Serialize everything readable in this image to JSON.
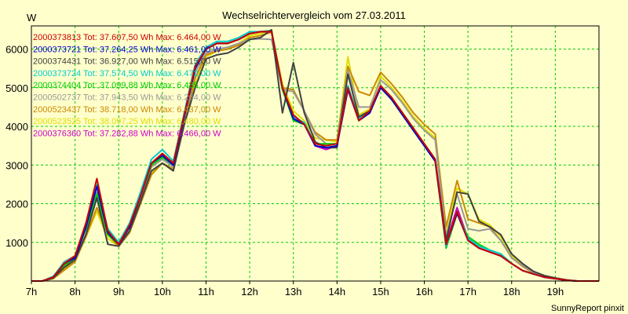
{
  "chart_data": {
    "type": "line",
    "title": "Wechselrichtervergleich vom 27.03.2011",
    "ylabel": "W",
    "xlabel": "",
    "footer": "SunnyReport pinxit",
    "ylim": [
      0,
      6600
    ],
    "xlim": [
      7.0,
      20.0
    ],
    "grid": true,
    "legend_position": "top-left",
    "y_ticks": [
      1000,
      2000,
      3000,
      4000,
      5000,
      6000
    ],
    "x_ticks": [
      7,
      8,
      9,
      10,
      11,
      12,
      13,
      14,
      15,
      16,
      17,
      18,
      19
    ],
    "x_tick_labels": [
      "7h",
      "8h",
      "9h",
      "10h",
      "11h",
      "12h",
      "13h",
      "14h",
      "15h",
      "16h",
      "17h",
      "18h",
      "19h"
    ],
    "x": [
      7.0,
      7.25,
      7.5,
      7.75,
      8.0,
      8.25,
      8.5,
      8.75,
      9.0,
      9.25,
      9.5,
      9.75,
      10.0,
      10.25,
      10.5,
      10.75,
      11.0,
      11.25,
      11.5,
      11.75,
      12.0,
      12.25,
      12.5,
      12.75,
      13.0,
      13.25,
      13.5,
      13.75,
      14.0,
      14.25,
      14.5,
      14.75,
      15.0,
      15.25,
      15.5,
      15.75,
      16.0,
      16.25,
      16.5,
      16.75,
      17.0,
      17.25,
      17.5,
      17.75,
      18.0,
      18.25,
      18.5,
      18.75,
      19.0,
      19.25,
      19.5,
      19.75,
      20.0
    ],
    "series": [
      {
        "name": "2000373813",
        "total": "37.607,50",
        "max": "6.464,00",
        "color": "#cc0000",
        "values": [
          0,
          0,
          100,
          450,
          650,
          1500,
          2650,
          1300,
          950,
          1450,
          2200,
          3050,
          3300,
          3050,
          4300,
          5550,
          6000,
          6150,
          6150,
          6250,
          6400,
          6450,
          6450,
          5000,
          4300,
          4050,
          3550,
          3500,
          3550,
          5000,
          4150,
          4400,
          5050,
          4750,
          4350,
          3950,
          3550,
          3150,
          950,
          1800,
          1050,
          850,
          750,
          650,
          450,
          270,
          180,
          100,
          60,
          20,
          0,
          0,
          0
        ]
      },
      {
        "name": "2000373721",
        "total": "37.264,25",
        "max": "6.461,00",
        "color": "#0000cc",
        "values": [
          0,
          0,
          100,
          450,
          600,
          1400,
          2450,
          1250,
          950,
          1400,
          2200,
          3050,
          3250,
          3000,
          4250,
          5500,
          6000,
          6150,
          6150,
          6250,
          6400,
          6450,
          6450,
          5000,
          4200,
          4050,
          3500,
          3450,
          3500,
          4950,
          4150,
          4350,
          5000,
          4700,
          4300,
          3900,
          3500,
          3100,
          950,
          1750,
          1050,
          850,
          750,
          650,
          450,
          270,
          180,
          100,
          60,
          20,
          0,
          0,
          0
        ]
      },
      {
        "name": "2000374431",
        "total": "36.927,00",
        "max": "6.515,00",
        "color": "#404040",
        "values": [
          0,
          0,
          80,
          350,
          550,
          1200,
          2150,
          950,
          900,
          1300,
          2050,
          2850,
          3050,
          2850,
          4050,
          5000,
          5750,
          5850,
          5900,
          6050,
          6250,
          6300,
          6500,
          4350,
          5650,
          4350,
          3600,
          3450,
          3450,
          5350,
          4250,
          4400,
          5050,
          4700,
          4350,
          3950,
          3550,
          3150,
          1050,
          2300,
          2250,
          1550,
          1400,
          1200,
          700,
          450,
          250,
          140,
          80,
          30,
          0,
          0,
          0
        ]
      },
      {
        "name": "2000373724",
        "total": "37.574,50",
        "max": "6.472,00",
        "color": "#00cccc",
        "values": [
          0,
          0,
          120,
          480,
          650,
          1500,
          2500,
          1350,
          1000,
          1500,
          2300,
          3150,
          3400,
          3100,
          4350,
          5600,
          6050,
          6200,
          6200,
          6300,
          6450,
          6450,
          6470,
          5000,
          4250,
          4100,
          3550,
          3500,
          3550,
          5050,
          4200,
          4400,
          5050,
          4750,
          4350,
          3950,
          3550,
          3150,
          900,
          1800,
          1100,
          900,
          800,
          700,
          450,
          270,
          180,
          100,
          60,
          20,
          0,
          0,
          0
        ]
      },
      {
        "name": "2000374404",
        "total": "37.099,88",
        "max": "6.485,00",
        "color": "#00cc00",
        "values": [
          0,
          0,
          80,
          400,
          600,
          1350,
          2250,
          1200,
          950,
          1400,
          2200,
          3000,
          3200,
          3000,
          4250,
          5500,
          6000,
          6150,
          6150,
          6250,
          6400,
          6450,
          6485,
          4950,
          4150,
          4050,
          3550,
          3550,
          3550,
          5000,
          4150,
          4350,
          5050,
          4700,
          4300,
          3900,
          3500,
          3100,
          850,
          1750,
          1150,
          950,
          800,
          700,
          450,
          270,
          180,
          100,
          60,
          20,
          0,
          0,
          0
        ]
      },
      {
        "name": "2000502737",
        "total": "37.943,50",
        "max": "6.264,00",
        "color": "#999999",
        "values": [
          0,
          0,
          100,
          500,
          650,
          1400,
          2300,
          1250,
          950,
          1400,
          2150,
          2950,
          3150,
          2950,
          4200,
          5400,
          5900,
          6000,
          6050,
          6150,
          6250,
          6264,
          6250,
          4950,
          4900,
          4400,
          3800,
          3550,
          3550,
          5450,
          4500,
          4500,
          5200,
          4950,
          4600,
          4200,
          3900,
          3650,
          1150,
          2250,
          1350,
          1300,
          1350,
          1050,
          600,
          400,
          220,
          120,
          70,
          25,
          0,
          0,
          0
        ]
      },
      {
        "name": "2000523437",
        "total": "38.718,00",
        "max": "6.437,00",
        "color": "#cc8800",
        "values": [
          0,
          0,
          60,
          280,
          500,
          1150,
          1900,
          1200,
          900,
          1250,
          2000,
          2750,
          3050,
          2900,
          4050,
          5250,
          5850,
          5950,
          6000,
          6100,
          6300,
          6350,
          6437,
          5000,
          4950,
          4400,
          3850,
          3650,
          3650,
          5550,
          4900,
          4800,
          5400,
          5100,
          4750,
          4350,
          4050,
          3800,
          1400,
          2600,
          1600,
          1500,
          1400,
          1050,
          600,
          380,
          200,
          110,
          60,
          20,
          0,
          0,
          0
        ]
      },
      {
        "name": "2000523525",
        "total": "38.097,25",
        "max": "6.480,00",
        "color": "#dddd00",
        "values": [
          0,
          0,
          70,
          300,
          520,
          1150,
          1800,
          1100,
          900,
          1300,
          2000,
          2800,
          3050,
          2900,
          4050,
          5100,
          5800,
          5950,
          6000,
          6150,
          6350,
          6400,
          6480,
          5100,
          4400,
          4150,
          3700,
          3650,
          3600,
          5800,
          4300,
          4450,
          5300,
          5000,
          4650,
          4250,
          3950,
          3700,
          1200,
          2400,
          2250,
          1600,
          1450,
          1150,
          650,
          420,
          240,
          140,
          80,
          30,
          0,
          0,
          0
        ]
      },
      {
        "name": "2000376360",
        "total": "37.282,88",
        "max": "6.466,00",
        "color": "#cc00cc",
        "values": [
          0,
          0,
          100,
          450,
          620,
          1350,
          2250,
          1250,
          950,
          1400,
          2200,
          3050,
          3250,
          3000,
          4250,
          5500,
          6000,
          6150,
          6150,
          6250,
          6400,
          6450,
          6466,
          5050,
          4200,
          4100,
          3500,
          3400,
          3500,
          5050,
          4150,
          4350,
          5050,
          4700,
          4300,
          3900,
          3500,
          3100,
          1000,
          1900,
          1100,
          850,
          750,
          650,
          450,
          270,
          180,
          100,
          60,
          20,
          0,
          0,
          0
        ]
      }
    ]
  }
}
